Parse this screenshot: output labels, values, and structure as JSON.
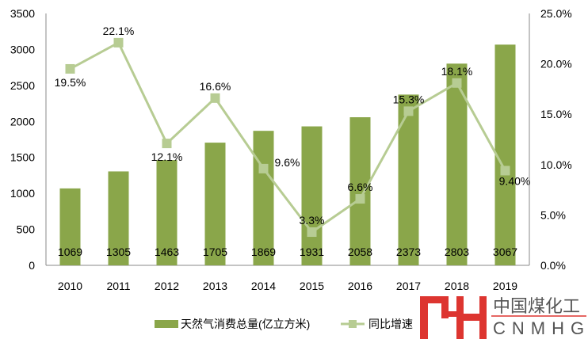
{
  "chart_data": {
    "type": "bar",
    "categories": [
      "2010",
      "2011",
      "2012",
      "2013",
      "2014",
      "2015",
      "2016",
      "2017",
      "2018",
      "2019"
    ],
    "series": [
      {
        "name": "天然气消费总量(亿立方米)",
        "type": "bar",
        "axis": "left",
        "color": "#8aa64a",
        "values": [
          1069,
          1305,
          1463,
          1705,
          1869,
          1931,
          2058,
          2373,
          2803,
          3067
        ],
        "labels": [
          "1069",
          "1305",
          "1463",
          "1705",
          "1869",
          "1931",
          "2058",
          "2373",
          "2803",
          "3067"
        ]
      },
      {
        "name": "同比增速",
        "type": "line",
        "axis": "right",
        "color": "#b7cc93",
        "values": [
          19.5,
          22.1,
          12.1,
          16.6,
          9.6,
          3.3,
          6.6,
          15.3,
          18.1,
          9.4
        ],
        "labels": [
          "19.5%",
          "22.1%",
          "12.1%",
          "16.6%",
          "9.6%",
          "3.3%",
          "6.6%",
          "15.3%",
          "18.1%",
          "9.40%"
        ]
      }
    ],
    "y_left": {
      "ylim": [
        0,
        3500
      ],
      "ticks": [
        "0",
        "500",
        "1000",
        "1500",
        "2000",
        "2500",
        "3000",
        "3500"
      ]
    },
    "y_right": {
      "ylim": [
        0,
        25
      ],
      "ticks": [
        "0.0%",
        "5.0%",
        "10.0%",
        "15.0%",
        "20.0%",
        "25.0%"
      ]
    },
    "legend": "bottom"
  },
  "watermark": {
    "text": "中国煤化工",
    "sub": "CNMHG"
  }
}
